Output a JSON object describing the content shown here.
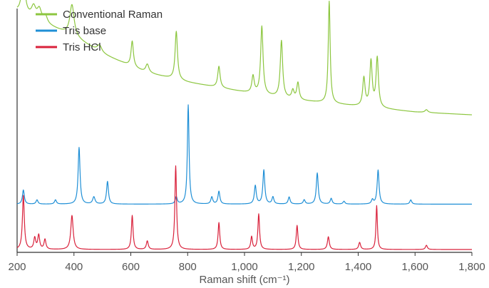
{
  "chart_data": {
    "type": "line",
    "title": "",
    "xlabel": "Raman shift (cm⁻¹)",
    "ylabel": "",
    "xlim": [
      200,
      1800
    ],
    "x_ticks": [
      200,
      400,
      600,
      800,
      1000,
      1200,
      1400,
      1600,
      1800
    ],
    "x_tick_labels": [
      "200",
      "400",
      "600",
      "800",
      "1,000",
      "1,200",
      "1,400",
      "1,600",
      "1,800"
    ],
    "y_axis_values_shown": false,
    "grid": false,
    "legend_position": "top-left",
    "series": [
      {
        "name": "Conventional Raman",
        "color": "#8cc63f",
        "offset": 0.92,
        "baseline": [
          [
            200,
            0.78
          ],
          [
            400,
            0.6
          ],
          [
            500,
            0.48
          ],
          [
            650,
            0.35
          ],
          [
            800,
            0.28
          ],
          [
            1000,
            0.21
          ],
          [
            1200,
            0.15
          ],
          [
            1400,
            0.11
          ],
          [
            1600,
            0.07
          ],
          [
            1800,
            0.05
          ]
        ],
        "peaks": [
          {
            "x": 222,
            "h": 0.28,
            "w": 7
          },
          {
            "x": 258,
            "h": 0.08,
            "w": 9
          },
          {
            "x": 278,
            "h": 0.08,
            "w": 9
          },
          {
            "x": 300,
            "h": 0.05,
            "w": 8
          },
          {
            "x": 393,
            "h": 0.22,
            "w": 9
          },
          {
            "x": 490,
            "h": 0.05,
            "w": 10
          },
          {
            "x": 605,
            "h": 0.18,
            "w": 5
          },
          {
            "x": 658,
            "h": 0.06,
            "w": 7
          },
          {
            "x": 760,
            "h": 0.34,
            "w": 5
          },
          {
            "x": 910,
            "h": 0.15,
            "w": 5
          },
          {
            "x": 1030,
            "h": 0.12,
            "w": 5
          },
          {
            "x": 1061,
            "h": 0.48,
            "w": 5
          },
          {
            "x": 1130,
            "h": 0.4,
            "w": 5
          },
          {
            "x": 1170,
            "h": 0.06,
            "w": 5
          },
          {
            "x": 1188,
            "h": 0.12,
            "w": 5
          },
          {
            "x": 1298,
            "h": 0.72,
            "w": 4
          },
          {
            "x": 1420,
            "h": 0.2,
            "w": 5
          },
          {
            "x": 1445,
            "h": 0.32,
            "w": 5
          },
          {
            "x": 1467,
            "h": 0.35,
            "w": 5
          },
          {
            "x": 1640,
            "h": 0.02,
            "w": 6
          }
        ]
      },
      {
        "name": "Tris base",
        "color": "#1f8fd6",
        "offset": 0.0,
        "baseline": [
          [
            200,
            0.34
          ],
          [
            1800,
            0.34
          ]
        ],
        "peaks": [
          {
            "x": 222,
            "h": 0.1,
            "w": 4
          },
          {
            "x": 270,
            "h": 0.03,
            "w": 4
          },
          {
            "x": 335,
            "h": 0.03,
            "w": 4
          },
          {
            "x": 418,
            "h": 0.4,
            "w": 4
          },
          {
            "x": 470,
            "h": 0.05,
            "w": 5
          },
          {
            "x": 518,
            "h": 0.16,
            "w": 4
          },
          {
            "x": 760,
            "h": 0.05,
            "w": 4
          },
          {
            "x": 802,
            "h": 0.7,
            "w": 3.5
          },
          {
            "x": 885,
            "h": 0.05,
            "w": 4
          },
          {
            "x": 910,
            "h": 0.09,
            "w": 4
          },
          {
            "x": 1038,
            "h": 0.13,
            "w": 4
          },
          {
            "x": 1068,
            "h": 0.24,
            "w": 4
          },
          {
            "x": 1100,
            "h": 0.05,
            "w": 4
          },
          {
            "x": 1157,
            "h": 0.05,
            "w": 4
          },
          {
            "x": 1210,
            "h": 0.03,
            "w": 4
          },
          {
            "x": 1256,
            "h": 0.22,
            "w": 4
          },
          {
            "x": 1305,
            "h": 0.04,
            "w": 4
          },
          {
            "x": 1350,
            "h": 0.02,
            "w": 4
          },
          {
            "x": 1450,
            "h": 0.03,
            "w": 4
          },
          {
            "x": 1470,
            "h": 0.24,
            "w": 4
          },
          {
            "x": 1585,
            "h": 0.03,
            "w": 4
          }
        ]
      },
      {
        "name": "Tris HCl",
        "color": "#d9213b",
        "offset": 0.0,
        "baseline": [
          [
            200,
            0.02
          ],
          [
            1800,
            0.02
          ]
        ],
        "peaks": [
          {
            "x": 222,
            "h": 0.38,
            "w": 4
          },
          {
            "x": 262,
            "h": 0.08,
            "w": 4
          },
          {
            "x": 276,
            "h": 0.1,
            "w": 4
          },
          {
            "x": 298,
            "h": 0.07,
            "w": 4
          },
          {
            "x": 393,
            "h": 0.24,
            "w": 5
          },
          {
            "x": 605,
            "h": 0.24,
            "w": 3.5
          },
          {
            "x": 658,
            "h": 0.06,
            "w": 4
          },
          {
            "x": 758,
            "h": 0.59,
            "w": 3.5
          },
          {
            "x": 910,
            "h": 0.19,
            "w": 3.5
          },
          {
            "x": 1025,
            "h": 0.09,
            "w": 3.5
          },
          {
            "x": 1050,
            "h": 0.25,
            "w": 3.5
          },
          {
            "x": 1185,
            "h": 0.17,
            "w": 3.5
          },
          {
            "x": 1295,
            "h": 0.09,
            "w": 4
          },
          {
            "x": 1405,
            "h": 0.05,
            "w": 4
          },
          {
            "x": 1465,
            "h": 0.31,
            "w": 3
          },
          {
            "x": 1640,
            "h": 0.03,
            "w": 4
          }
        ]
      }
    ]
  }
}
